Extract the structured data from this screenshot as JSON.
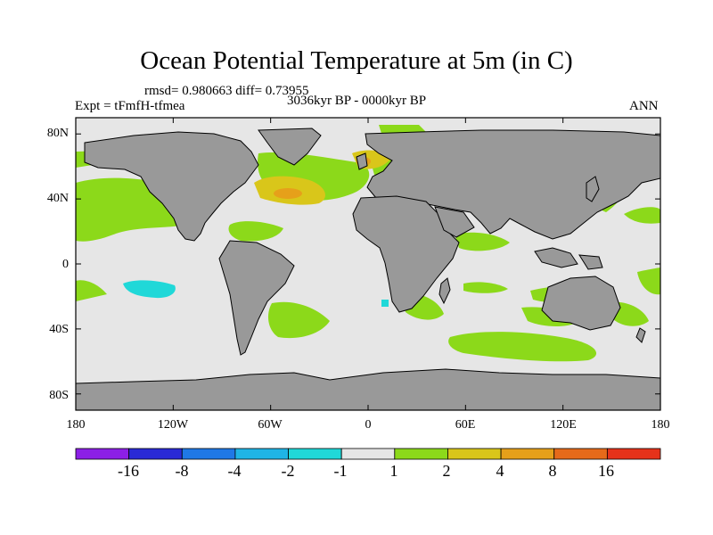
{
  "title": "Ocean Potential Temperature at 5m (in C)",
  "stats": "rmsd= 0.980663 diff= 0.73955",
  "experiment": "Expt = tFmfH-tfmea",
  "period": "3036kyr BP - 0000kyr BP",
  "season": "ANN",
  "map": {
    "lat_ticks": [
      {
        "label": "80N",
        "value": 80
      },
      {
        "label": "40N",
        "value": 40
      },
      {
        "label": "0",
        "value": 0
      },
      {
        "label": "40S",
        "value": -40
      },
      {
        "label": "80S",
        "value": -80
      }
    ],
    "lon_ticks": [
      {
        "label": "180",
        "value": -180
      },
      {
        "label": "120W",
        "value": -120
      },
      {
        "label": "60W",
        "value": -60
      },
      {
        "label": "0",
        "value": 0
      },
      {
        "label": "60E",
        "value": 60
      },
      {
        "label": "120E",
        "value": 120
      },
      {
        "label": "180",
        "value": 180
      }
    ]
  },
  "colorbar": {
    "boundary_labels": [
      "-16",
      "-8",
      "-4",
      "-2",
      "-1",
      "1",
      "2",
      "4",
      "8",
      "16"
    ],
    "colors": [
      "#8c1fe6",
      "#2a2ad6",
      "#1f78e6",
      "#1fb4e6",
      "#20d8d8",
      "#e6e6e6",
      "#8cd91a",
      "#d9c61a",
      "#e6a01a",
      "#e66a1a",
      "#e6321a"
    ]
  },
  "colors": {
    "land": "#999999",
    "ocean_neutral": "#e6e6e6",
    "warm_1_2": "#8cd91a",
    "warm_2_4": "#d9c61a",
    "warm_4_8": "#e6a01a",
    "cool_-2_-1": "#20d8d8"
  }
}
